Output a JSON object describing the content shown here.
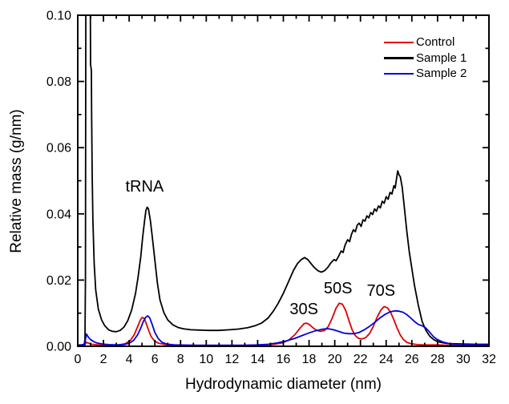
{
  "chart_data": {
    "type": "line",
    "title": "",
    "xlabel": "Hydrodynamic diameter (nm)",
    "ylabel": "Relative mass (g/nm)",
    "xlim": [
      0,
      32
    ],
    "ylim": [
      0,
      0.1
    ],
    "grid": false,
    "legend_position": "top-right-inside",
    "x_tick_labels": [
      "0",
      "2",
      "4",
      "6",
      "8",
      "10",
      "12",
      "14",
      "16",
      "18",
      "20",
      "22",
      "24",
      "26",
      "28",
      "30",
      "32"
    ],
    "x_major_step": 2,
    "x_minor_step": 1,
    "y_tick_labels": [
      "0.00",
      "0.02",
      "0.04",
      "0.06",
      "0.08",
      "0.10"
    ],
    "y_major_step": 0.02,
    "y_minor_step": 0.01,
    "annotations": [
      {
        "text": "tRNA",
        "x": 5.2,
        "y": 0.0484
      },
      {
        "text": "30S",
        "x": 17.6,
        "y": 0.0114
      },
      {
        "text": "50S",
        "x": 20.25,
        "y": 0.0177
      },
      {
        "text": "70S",
        "x": 23.6,
        "y": 0.0169
      }
    ],
    "series": [
      {
        "name": "Control",
        "color": "#dd0000",
        "points": [
          [
            0,
            0.0003
          ],
          [
            0.55,
            0.0003
          ],
          [
            0.65,
            0.0012
          ],
          [
            0.8,
            0.001
          ],
          [
            1.1,
            0.0006
          ],
          [
            1.6,
            0.0004
          ],
          [
            2.5,
            0.0003
          ],
          [
            3.2,
            0.0004
          ],
          [
            3.7,
            0.0008
          ],
          [
            4.1,
            0.0018
          ],
          [
            4.4,
            0.0035
          ],
          [
            4.65,
            0.0058
          ],
          [
            4.85,
            0.0078
          ],
          [
            5.0,
            0.0087
          ],
          [
            5.15,
            0.0085
          ],
          [
            5.3,
            0.0072
          ],
          [
            5.5,
            0.005
          ],
          [
            5.7,
            0.003
          ],
          [
            5.95,
            0.0017
          ],
          [
            6.3,
            0.0009
          ],
          [
            6.8,
            0.0005
          ],
          [
            7.5,
            0.0004
          ],
          [
            9,
            0.0003
          ],
          [
            11,
            0.0003
          ],
          [
            13,
            0.0003
          ],
          [
            14.5,
            0.0004
          ],
          [
            15.3,
            0.0006
          ],
          [
            15.9,
            0.001
          ],
          [
            16.4,
            0.0018
          ],
          [
            16.9,
            0.0035
          ],
          [
            17.3,
            0.0055
          ],
          [
            17.6,
            0.0068
          ],
          [
            17.8,
            0.007
          ],
          [
            18.05,
            0.0065
          ],
          [
            18.3,
            0.0056
          ],
          [
            18.6,
            0.0048
          ],
          [
            18.9,
            0.0045
          ],
          [
            19.2,
            0.0048
          ],
          [
            19.5,
            0.006
          ],
          [
            19.8,
            0.0085
          ],
          [
            20.1,
            0.0115
          ],
          [
            20.35,
            0.013
          ],
          [
            20.6,
            0.0127
          ],
          [
            20.85,
            0.0108
          ],
          [
            21.1,
            0.0078
          ],
          [
            21.35,
            0.005
          ],
          [
            21.6,
            0.0032
          ],
          [
            21.85,
            0.0024
          ],
          [
            22.1,
            0.0022
          ],
          [
            22.4,
            0.0026
          ],
          [
            22.7,
            0.0038
          ],
          [
            23.0,
            0.006
          ],
          [
            23.3,
            0.0088
          ],
          [
            23.6,
            0.011
          ],
          [
            23.85,
            0.012
          ],
          [
            24.1,
            0.0116
          ],
          [
            24.35,
            0.0102
          ],
          [
            24.6,
            0.008
          ],
          [
            24.85,
            0.0055
          ],
          [
            25.1,
            0.0034
          ],
          [
            25.35,
            0.002
          ],
          [
            25.6,
            0.0012
          ],
          [
            25.9,
            0.0008
          ],
          [
            26.4,
            0.0005
          ],
          [
            27,
            0.0004
          ],
          [
            28,
            0.0004
          ],
          [
            29,
            0.0003
          ],
          [
            30,
            0.0003
          ],
          [
            32,
            0.0003
          ]
        ]
      },
      {
        "name": "Sample 1",
        "color": "#000000",
        "points": [
          [
            0,
            0.0004
          ],
          [
            0.3,
            0.0004
          ],
          [
            0.5,
            0.0006
          ],
          [
            0.56,
            0.002
          ],
          [
            0.6,
            0.02
          ],
          [
            0.63,
            0.108
          ],
          [
            0.97,
            0.108
          ],
          [
            1.0,
            0.085
          ],
          [
            1.04,
            0.084
          ],
          [
            1.06,
            0.083
          ],
          [
            1.08,
            0.07
          ],
          [
            1.12,
            0.052
          ],
          [
            1.18,
            0.038
          ],
          [
            1.28,
            0.025
          ],
          [
            1.4,
            0.017
          ],
          [
            1.6,
            0.0112
          ],
          [
            1.85,
            0.008
          ],
          [
            2.1,
            0.0062
          ],
          [
            2.4,
            0.005
          ],
          [
            2.7,
            0.0045
          ],
          [
            3.0,
            0.0044
          ],
          [
            3.3,
            0.0048
          ],
          [
            3.6,
            0.0058
          ],
          [
            3.9,
            0.0078
          ],
          [
            4.2,
            0.011
          ],
          [
            4.5,
            0.016
          ],
          [
            4.7,
            0.021
          ],
          [
            4.9,
            0.027
          ],
          [
            5.05,
            0.033
          ],
          [
            5.2,
            0.038
          ],
          [
            5.3,
            0.041
          ],
          [
            5.4,
            0.042
          ],
          [
            5.5,
            0.0415
          ],
          [
            5.65,
            0.038
          ],
          [
            5.8,
            0.033
          ],
          [
            6.0,
            0.026
          ],
          [
            6.2,
            0.019
          ],
          [
            6.4,
            0.014
          ],
          [
            6.7,
            0.0102
          ],
          [
            7.0,
            0.008
          ],
          [
            7.4,
            0.0065
          ],
          [
            7.8,
            0.0057
          ],
          [
            8.2,
            0.0053
          ],
          [
            8.8,
            0.005
          ],
          [
            9.5,
            0.0049
          ],
          [
            10.2,
            0.0048
          ],
          [
            11,
            0.0048
          ],
          [
            11.8,
            0.005
          ],
          [
            12.5,
            0.0052
          ],
          [
            13.2,
            0.0056
          ],
          [
            13.8,
            0.0062
          ],
          [
            14.3,
            0.007
          ],
          [
            14.8,
            0.0085
          ],
          [
            15.2,
            0.0105
          ],
          [
            15.6,
            0.013
          ],
          [
            16.0,
            0.016
          ],
          [
            16.4,
            0.0195
          ],
          [
            16.8,
            0.023
          ],
          [
            17.1,
            0.025
          ],
          [
            17.4,
            0.0262
          ],
          [
            17.65,
            0.0268
          ],
          [
            17.9,
            0.0262
          ],
          [
            18.15,
            0.025
          ],
          [
            18.4,
            0.0238
          ],
          [
            18.7,
            0.0228
          ],
          [
            18.95,
            0.0224
          ],
          [
            19.2,
            0.0228
          ],
          [
            19.45,
            0.0238
          ],
          [
            19.7,
            0.0252
          ],
          [
            19.95,
            0.0262
          ],
          [
            20.1,
            0.0258
          ],
          [
            20.3,
            0.0272
          ],
          [
            20.5,
            0.0288
          ],
          [
            20.65,
            0.0283
          ],
          [
            20.8,
            0.0305
          ],
          [
            21.0,
            0.0322
          ],
          [
            21.15,
            0.0316
          ],
          [
            21.3,
            0.0338
          ],
          [
            21.45,
            0.0352
          ],
          [
            21.6,
            0.0346
          ],
          [
            21.75,
            0.0366
          ],
          [
            21.9,
            0.0372
          ],
          [
            22.05,
            0.0362
          ],
          [
            22.2,
            0.0382
          ],
          [
            22.35,
            0.0378
          ],
          [
            22.5,
            0.0394
          ],
          [
            22.65,
            0.0388
          ],
          [
            22.8,
            0.0404
          ],
          [
            22.95,
            0.0398
          ],
          [
            23.1,
            0.0415
          ],
          [
            23.25,
            0.0408
          ],
          [
            23.4,
            0.0424
          ],
          [
            23.55,
            0.0418
          ],
          [
            23.7,
            0.0438
          ],
          [
            23.85,
            0.0432
          ],
          [
            24.0,
            0.0452
          ],
          [
            24.15,
            0.0444
          ],
          [
            24.3,
            0.0465
          ],
          [
            24.45,
            0.046
          ],
          [
            24.6,
            0.0485
          ],
          [
            24.7,
            0.0478
          ],
          [
            24.8,
            0.0505
          ],
          [
            24.9,
            0.053
          ],
          [
            25.0,
            0.0518
          ],
          [
            25.1,
            0.0512
          ],
          [
            25.25,
            0.048
          ],
          [
            25.4,
            0.0425
          ],
          [
            25.6,
            0.035
          ],
          [
            25.8,
            0.0285
          ],
          [
            26.0,
            0.0235
          ],
          [
            26.2,
            0.0185
          ],
          [
            26.5,
            0.0125
          ],
          [
            26.8,
            0.0075
          ],
          [
            27.1,
            0.0048
          ],
          [
            27.4,
            0.003
          ],
          [
            27.7,
            0.002
          ],
          [
            28.0,
            0.0014
          ],
          [
            28.5,
            0.001
          ],
          [
            29.0,
            0.0008
          ],
          [
            30,
            0.0007
          ],
          [
            31,
            0.0006
          ],
          [
            32,
            0.0006
          ]
        ]
      },
      {
        "name": "Sample 2",
        "color": "#0000dd",
        "points": [
          [
            0,
            0.0003
          ],
          [
            0.55,
            0.0005
          ],
          [
            0.62,
            0.0025
          ],
          [
            0.68,
            0.0037
          ],
          [
            0.78,
            0.003
          ],
          [
            0.9,
            0.0024
          ],
          [
            1.05,
            0.0019
          ],
          [
            1.25,
            0.0014
          ],
          [
            1.5,
            0.001
          ],
          [
            1.9,
            0.0007
          ],
          [
            2.4,
            0.0005
          ],
          [
            3.0,
            0.0004
          ],
          [
            3.6,
            0.0005
          ],
          [
            4.0,
            0.0009
          ],
          [
            4.35,
            0.0018
          ],
          [
            4.65,
            0.0034
          ],
          [
            4.9,
            0.0055
          ],
          [
            5.1,
            0.0075
          ],
          [
            5.3,
            0.0088
          ],
          [
            5.45,
            0.0092
          ],
          [
            5.6,
            0.0086
          ],
          [
            5.8,
            0.0065
          ],
          [
            6.0,
            0.0042
          ],
          [
            6.25,
            0.0024
          ],
          [
            6.55,
            0.0012
          ],
          [
            6.9,
            0.0007
          ],
          [
            7.5,
            0.0004
          ],
          [
            9,
            0.0003
          ],
          [
            11,
            0.0003
          ],
          [
            13,
            0.0003
          ],
          [
            14,
            0.0004
          ],
          [
            14.8,
            0.0006
          ],
          [
            15.5,
            0.001
          ],
          [
            16.2,
            0.0016
          ],
          [
            16.9,
            0.0024
          ],
          [
            17.5,
            0.0033
          ],
          [
            18.1,
            0.0042
          ],
          [
            18.6,
            0.0048
          ],
          [
            19.1,
            0.0052
          ],
          [
            19.5,
            0.0053
          ],
          [
            19.9,
            0.005
          ],
          [
            20.3,
            0.0045
          ],
          [
            20.7,
            0.004
          ],
          [
            21.1,
            0.0038
          ],
          [
            21.5,
            0.0038
          ],
          [
            21.9,
            0.0042
          ],
          [
            22.3,
            0.005
          ],
          [
            22.7,
            0.006
          ],
          [
            23.1,
            0.0072
          ],
          [
            23.5,
            0.0085
          ],
          [
            23.9,
            0.0096
          ],
          [
            24.3,
            0.0104
          ],
          [
            24.7,
            0.0107
          ],
          [
            25.0,
            0.0106
          ],
          [
            25.3,
            0.0103
          ],
          [
            25.6,
            0.0096
          ],
          [
            25.9,
            0.0086
          ],
          [
            26.2,
            0.0075
          ],
          [
            26.5,
            0.0066
          ],
          [
            26.8,
            0.0062
          ],
          [
            27.1,
            0.0055
          ],
          [
            27.4,
            0.0042
          ],
          [
            27.7,
            0.0028
          ],
          [
            28.0,
            0.002
          ],
          [
            28.4,
            0.0013
          ],
          [
            28.8,
            0.0009
          ],
          [
            29.3,
            0.0006
          ],
          [
            30,
            0.0005
          ],
          [
            31,
            0.0004
          ],
          [
            32,
            0.0004
          ]
        ]
      }
    ]
  }
}
